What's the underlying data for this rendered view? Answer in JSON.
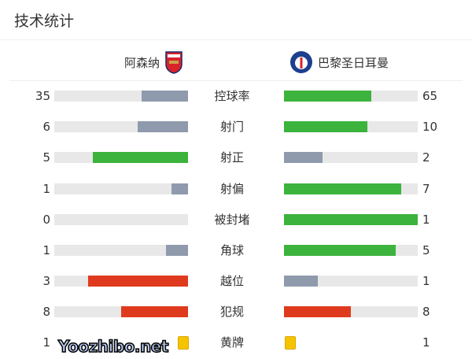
{
  "title": "技术统计",
  "home": {
    "name": "阿森纳",
    "logo_text": "Arsenal"
  },
  "away": {
    "name": "巴黎圣日耳曼",
    "logo_text": "PSG"
  },
  "colors": {
    "green": "#3cb33c",
    "gray": "#8f9aac",
    "red": "#df3a1d",
    "yellow": "#f5c400"
  },
  "stats": [
    {
      "label": "控球率",
      "home": "35",
      "away": "65",
      "hf": 0.35,
      "af": 0.65,
      "hc": "gray",
      "ac": "green"
    },
    {
      "label": "射门",
      "home": "6",
      "away": "10",
      "hf": 0.375,
      "af": 0.625,
      "hc": "gray",
      "ac": "green"
    },
    {
      "label": "射正",
      "home": "5",
      "away": "2",
      "hf": 0.714,
      "af": 0.286,
      "hc": "green",
      "ac": "gray"
    },
    {
      "label": "射偏",
      "home": "1",
      "away": "7",
      "hf": 0.125,
      "af": 0.875,
      "hc": "gray",
      "ac": "green"
    },
    {
      "label": "被封堵",
      "home": "0",
      "away": "1",
      "hf": 0,
      "af": 1,
      "hc": "gray",
      "ac": "green"
    },
    {
      "label": "角球",
      "home": "1",
      "away": "5",
      "hf": 0.167,
      "af": 0.833,
      "hc": "gray",
      "ac": "green"
    },
    {
      "label": "越位",
      "home": "3",
      "away": "1",
      "hf": 0.75,
      "af": 0.25,
      "hc": "red",
      "ac": "gray"
    },
    {
      "label": "犯规",
      "home": "8",
      "away": "8",
      "hf": 0.5,
      "af": 0.5,
      "hc": "red",
      "ac": "red"
    }
  ],
  "yellow": {
    "label": "黄牌",
    "home": "1",
    "away": "1"
  },
  "watermark": "Yoozhibo.net"
}
